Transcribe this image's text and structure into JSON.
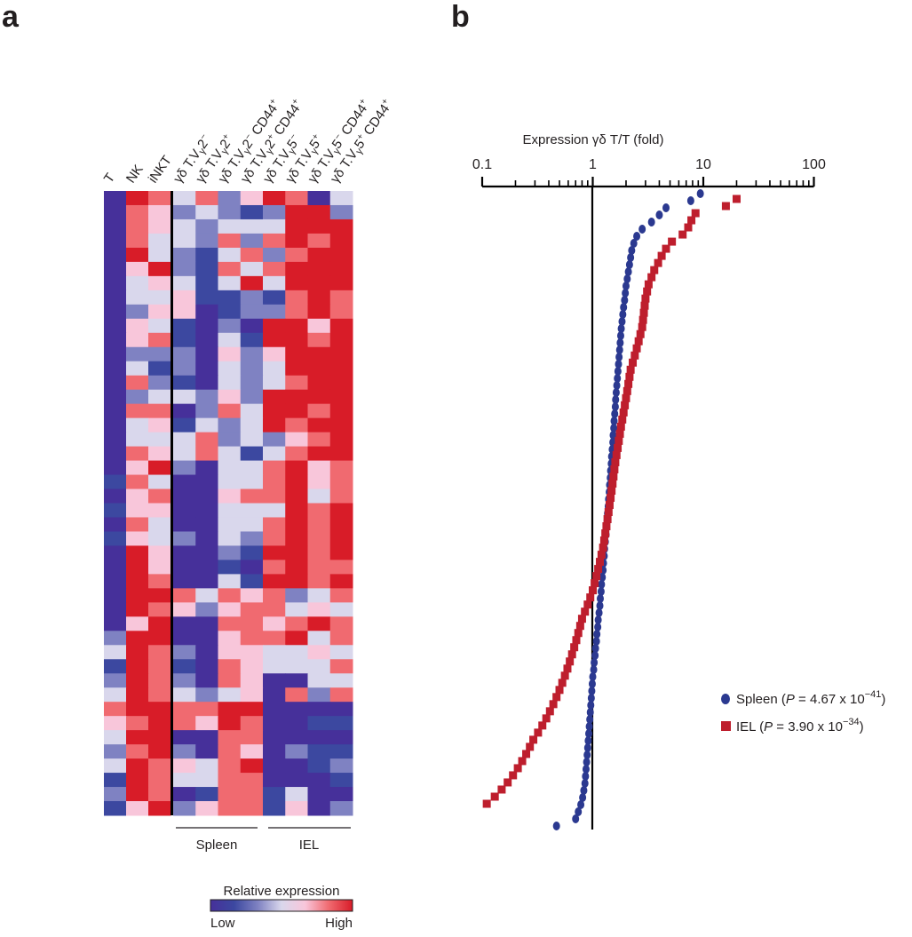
{
  "panels": {
    "a": "a",
    "b": "b"
  },
  "heatmap": {
    "columns": [
      {
        "parts": [
          "T"
        ]
      },
      {
        "parts": [
          "NK"
        ]
      },
      {
        "parts": [
          "iNKT"
        ]
      },
      {
        "parts": [
          "γδ T.V",
          "γ",
          "2",
          "−",
          "",
          ""
        ]
      },
      {
        "parts": [
          "γδ T.V",
          "γ",
          "2",
          "+",
          "",
          ""
        ]
      },
      {
        "parts": [
          "γδ T.V",
          "γ",
          "2",
          "−",
          " CD44",
          "+"
        ]
      },
      {
        "parts": [
          "γδ T.V",
          "γ",
          "2",
          "+",
          " CD44",
          "+"
        ]
      },
      {
        "parts": [
          "γδ T.V",
          "γ",
          "5",
          "−",
          "",
          ""
        ]
      },
      {
        "parts": [
          "γδ T.V",
          "γ",
          "5",
          "+",
          "",
          ""
        ]
      },
      {
        "parts": [
          "γδ T.V",
          "γ",
          "5",
          "−",
          " CD44",
          "+"
        ]
      },
      {
        "parts": [
          "γδ T.V",
          "γ",
          "5",
          "+",
          " CD44",
          "+"
        ]
      }
    ],
    "scale_colors": [
      "#46309a",
      "#3c48a0",
      "#7f82c2",
      "#d9d7ec",
      "#f8c6da",
      "#f06a70",
      "#d81c28"
    ],
    "rows": [
      "06535246503",
      "05423212662",
      "05432333666",
      "05332525656",
      "06321352566",
      "04621535666",
      "03431363666",
      "03341121565",
      "02440122565",
      "04310206646",
      "04510316656",
      "02220424666",
      "03120323666",
      "05210323566",
      "02332426666",
      "05502536656",
      "03413236566",
      "03335232456",
      "05435313566",
      "04620335645",
      "15300335645",
      "04500455635",
      "14400333656",
      "05300335656",
      "14320325656",
      "06400216656",
      "06400105655",
      "06500316656",
      "06653545235",
      "06542455343",
      "04600554565",
      "26600455635",
      "36520443343",
      "16510543335",
      "26520540033",
      "36532340525",
      "56655660000",
      "45654650011",
      "36600550000",
      "25620540211",
      "36543560012",
      "16533550001",
      "26501551300",
      "14624551402"
    ],
    "groups": [
      {
        "label": "Spleen"
      },
      {
        "label": "IEL"
      }
    ],
    "colorbar": {
      "title": "Relative expression",
      "low": "Low",
      "high": "High"
    }
  },
  "chart_data": {
    "type": "scatter",
    "title": "Expression γδ T/T (fold)",
    "xscale": "log",
    "xlim": [
      0.1,
      100
    ],
    "xticks": [
      "0.1",
      "1",
      "10",
      "100"
    ],
    "reference_line": 1,
    "y": "genes ranked by fold change (descending, top to bottom)",
    "series": [
      {
        "name": "Spleen",
        "marker": "circle",
        "color": "#2b3990",
        "legend": {
          "name": "Spleen (",
          "p": "P",
          "eq": " = 4.67 x 10",
          "exp": "−41",
          "close": ")"
        },
        "values": [
          9.4,
          7.7,
          4.6,
          4.0,
          3.4,
          2.8,
          2.5,
          2.35,
          2.25,
          2.2,
          2.15,
          2.1,
          2.05,
          2.0,
          1.97,
          1.94,
          1.9,
          1.87,
          1.84,
          1.81,
          1.79,
          1.77,
          1.75,
          1.73,
          1.71,
          1.69,
          1.67,
          1.65,
          1.63,
          1.61,
          1.6,
          1.58,
          1.56,
          1.55,
          1.53,
          1.52,
          1.5,
          1.48,
          1.47,
          1.45,
          1.44,
          1.42,
          1.41,
          1.39,
          1.38,
          1.36,
          1.35,
          1.33,
          1.32,
          1.3,
          1.28,
          1.27,
          1.25,
          1.24,
          1.22,
          1.2,
          1.19,
          1.17,
          1.16,
          1.14,
          1.12,
          1.11,
          1.09,
          1.08,
          1.06,
          1.05,
          1.03,
          1.02,
          1.0,
          0.99,
          0.98,
          0.97,
          0.96,
          0.95,
          0.94,
          0.93,
          0.92,
          0.91,
          0.9,
          0.89,
          0.88,
          0.87,
          0.86,
          0.85,
          0.83,
          0.81,
          0.78,
          0.74,
          0.7,
          0.47
        ]
      },
      {
        "name": "IEL",
        "marker": "square",
        "color": "#be1e2d",
        "legend": {
          "name": "IEL (",
          "p": "P",
          "eq": " = 3.90 x 10",
          "exp": "−34",
          "close": ")"
        },
        "values": [
          20,
          16,
          8.5,
          7.8,
          7.3,
          6.5,
          5.2,
          4.6,
          4.2,
          3.9,
          3.6,
          3.4,
          3.2,
          3.1,
          3.0,
          2.95,
          2.9,
          2.85,
          2.8,
          2.7,
          2.6,
          2.5,
          2.4,
          2.3,
          2.2,
          2.15,
          2.1,
          2.05,
          2.0,
          1.95,
          1.9,
          1.85,
          1.8,
          1.76,
          1.72,
          1.68,
          1.64,
          1.6,
          1.57,
          1.54,
          1.51,
          1.48,
          1.45,
          1.42,
          1.39,
          1.36,
          1.33,
          1.3,
          1.27,
          1.24,
          1.2,
          1.16,
          1.12,
          1.08,
          1.04,
          1.0,
          0.95,
          0.9,
          0.85,
          0.8,
          0.77,
          0.74,
          0.71,
          0.68,
          0.65,
          0.62,
          0.59,
          0.56,
          0.53,
          0.5,
          0.47,
          0.44,
          0.41,
          0.38,
          0.35,
          0.32,
          0.29,
          0.27,
          0.25,
          0.23,
          0.21,
          0.19,
          0.17,
          0.15,
          0.13,
          0.11
        ]
      }
    ]
  }
}
